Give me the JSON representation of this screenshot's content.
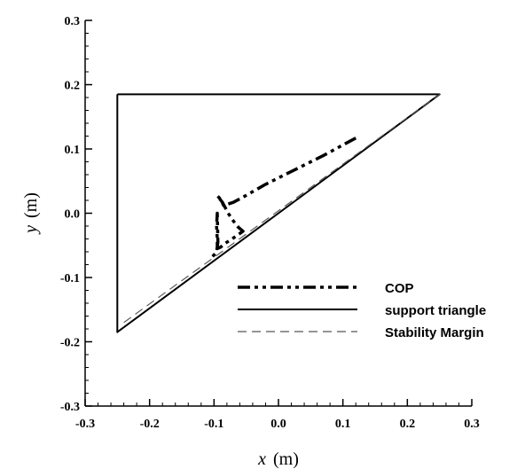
{
  "chart_data": {
    "type": "line",
    "xlabel_var": "x",
    "xlabel_unit": "(m)",
    "ylabel_var": "y",
    "ylabel_unit": "(m)",
    "xlim": [
      -0.3,
      0.3
    ],
    "ylim": [
      -0.3,
      0.3
    ],
    "x_ticks": [
      "-0.3",
      "-0.2",
      "-0.1",
      "0.0",
      "0.1",
      "0.2",
      "0.3"
    ],
    "y_ticks": [
      "-0.3",
      "-0.2",
      "-0.1",
      "0.0",
      "0.1",
      "0.2",
      "0.3"
    ],
    "x_tick_values": [
      -0.3,
      -0.2,
      -0.1,
      0.0,
      0.1,
      0.2,
      0.3
    ],
    "y_tick_values": [
      -0.3,
      -0.2,
      -0.1,
      0.0,
      0.1,
      0.2,
      0.3
    ],
    "grid": false,
    "legend_position": "bottom-right",
    "series": [
      {
        "name": "COP",
        "style": "dash-dot-dot",
        "color": "#000000",
        "x": [
          0.12,
          0.07,
          0.02,
          -0.02,
          -0.055,
          -0.07,
          -0.085,
          -0.09,
          -0.095,
          -0.087,
          -0.078,
          -0.07,
          -0.062,
          -0.055,
          -0.072,
          -0.083,
          -0.09,
          -0.095,
          -0.095,
          -0.096,
          -0.095,
          -0.094,
          -0.096,
          -0.1,
          -0.105
        ],
        "y": [
          0.117,
          0.09,
          0.065,
          0.045,
          0.025,
          0.017,
          0.012,
          0.022,
          0.027,
          0.017,
          0.0,
          -0.012,
          -0.022,
          -0.028,
          -0.04,
          -0.047,
          -0.053,
          -0.055,
          -0.04,
          -0.02,
          0.0,
          -0.045,
          -0.06,
          -0.065,
          -0.07
        ]
      },
      {
        "name": "support triangle",
        "style": "solid",
        "color": "#000000",
        "x": [
          -0.25,
          0.25,
          -0.25,
          -0.25
        ],
        "y": [
          0.185,
          0.185,
          -0.185,
          0.185
        ]
      },
      {
        "name": "Stability Margin",
        "style": "dashed",
        "color": "#555555",
        "x": [
          -0.24,
          0.25
        ],
        "y": [
          -0.17,
          0.185
        ]
      }
    ]
  }
}
